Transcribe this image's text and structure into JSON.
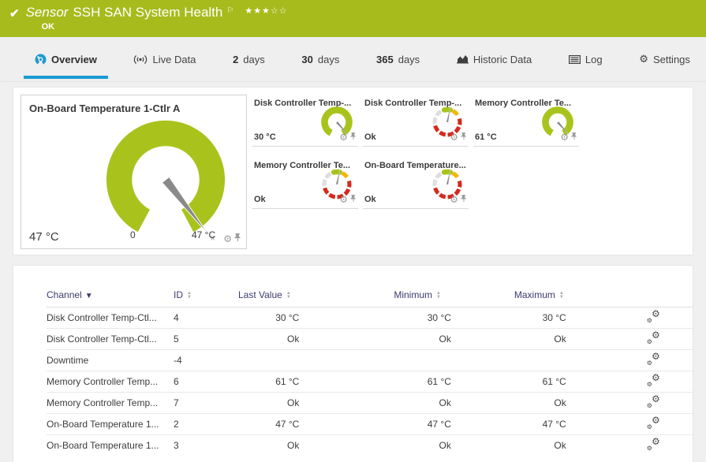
{
  "header": {
    "sensor_label": "Sensor",
    "title": "SSH SAN System Health",
    "status": "OK",
    "priority_stars": "★★★☆☆",
    "flag": "⚐",
    "check": "✔",
    "colors": {
      "background": "#a7bb1d",
      "text": "#ffffff"
    }
  },
  "tabs": [
    {
      "id": "overview",
      "label": "Overview",
      "icon": "gauge-icon",
      "active": true
    },
    {
      "id": "live-data",
      "label": "Live Data",
      "icon": "live-icon",
      "active": false
    },
    {
      "id": "2-days",
      "number": "2",
      "label": "days",
      "active": false
    },
    {
      "id": "30-days",
      "number": "30",
      "label": "days",
      "active": false
    },
    {
      "id": "365-days",
      "number": "365",
      "label": "days",
      "active": false
    },
    {
      "id": "historic-data",
      "label": "Historic Data",
      "icon": "chart-icon",
      "active": false
    },
    {
      "id": "log",
      "label": "Log",
      "icon": "log-icon",
      "active": false
    },
    {
      "id": "settings",
      "label": "Settings",
      "icon": "gear-icon",
      "active": false
    }
  ],
  "gauges": {
    "primary": {
      "title": "On-Board Temperature 1-Ctlr A",
      "value": "47 °C",
      "scale_min": "0",
      "scale_max": "47 °C",
      "type": "radial",
      "needle_angle": 52
    },
    "mini": [
      {
        "title": "Disk Controller Temp-...",
        "value": "30 °C",
        "type": "radial",
        "needle_angle": 48
      },
      {
        "title": "Disk Controller Temp-...",
        "value": "Ok",
        "type": "segmented",
        "needle_angle": -78
      },
      {
        "title": "Memory Controller Te...",
        "value": "61 °C",
        "type": "radial",
        "needle_angle": 48
      },
      {
        "title": "Memory Controller Te...",
        "value": "Ok",
        "type": "segmented",
        "needle_angle": -78
      },
      {
        "title": "On-Board Temperature...",
        "value": "Ok",
        "type": "segmented",
        "needle_angle": -78
      }
    ],
    "colors": {
      "ok": "#a9c31c",
      "warning": "#f2b600",
      "error": "#d5291d",
      "inactive": "#dedede",
      "needle": "#8a8a8a"
    }
  },
  "table": {
    "columns": [
      {
        "label": "Channel",
        "sort": "desc"
      },
      {
        "label": "ID",
        "sort": "both"
      },
      {
        "label": "Last Value",
        "sort": "both"
      },
      {
        "label": "Minimum",
        "sort": "both"
      },
      {
        "label": "Maximum",
        "sort": "both"
      },
      {
        "label": "",
        "sort": "none"
      }
    ],
    "rows": [
      {
        "channel": "Disk Controller Temp-Ctl...",
        "id": "4",
        "last_value": "30 °C",
        "minimum": "30 °C",
        "maximum": "30 °C"
      },
      {
        "channel": "Disk Controller Temp-Ctl...",
        "id": "5",
        "last_value": "Ok",
        "minimum": "Ok",
        "maximum": "Ok"
      },
      {
        "channel": "Downtime",
        "id": "-4",
        "last_value": "",
        "minimum": "",
        "maximum": ""
      },
      {
        "channel": "Memory Controller Temp...",
        "id": "6",
        "last_value": "61 °C",
        "minimum": "61 °C",
        "maximum": "61 °C"
      },
      {
        "channel": "Memory Controller Temp...",
        "id": "7",
        "last_value": "Ok",
        "minimum": "Ok",
        "maximum": "Ok"
      },
      {
        "channel": "On-Board Temperature 1...",
        "id": "2",
        "last_value": "47 °C",
        "minimum": "47 °C",
        "maximum": "47 °C"
      },
      {
        "channel": "On-Board Temperature 1...",
        "id": "3",
        "last_value": "Ok",
        "minimum": "Ok",
        "maximum": "Ok"
      }
    ]
  }
}
